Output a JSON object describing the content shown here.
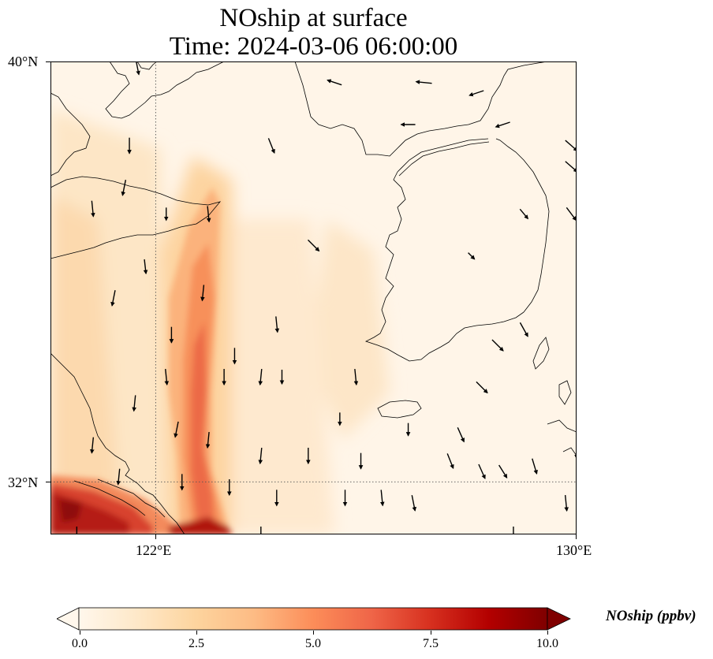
{
  "title": {
    "line1": "NOship at surface",
    "line2": "Time: 2024-03-06 06:00:00"
  },
  "axes": {
    "lat_labels": [
      "40°N",
      "32°N"
    ],
    "lon_labels": [
      "122°E",
      "130°E"
    ],
    "lon_range": [
      120,
      130
    ],
    "lat_range": [
      31,
      40
    ],
    "gridlines": "dotted at 122°E and 32°N"
  },
  "colorbar": {
    "label": "NOship (ppbv)",
    "ticks": [
      "0.0",
      "2.5",
      "5.0",
      "7.5",
      "10.0"
    ],
    "range": [
      0,
      10
    ],
    "extend": "both",
    "colormap": "OrRd",
    "colors": [
      "#fff7ec",
      "#fee8c8",
      "#fdd49e",
      "#fdbb84",
      "#fc8d59",
      "#ef6548",
      "#d7301f",
      "#b30000",
      "#7f0000"
    ]
  },
  "field": {
    "description_values_ppbv": "ship-lane NO concentration",
    "samples": [
      {
        "lon": 120.3,
        "lat": 31.3,
        "value": 9.5
      },
      {
        "lon": 121.2,
        "lat": 31.4,
        "value": 9.0
      },
      {
        "lon": 122.6,
        "lat": 31.2,
        "value": 9.5
      },
      {
        "lon": 122.8,
        "lat": 32.3,
        "value": 6.5
      },
      {
        "lon": 123.0,
        "lat": 33.5,
        "value": 5.5
      },
      {
        "lon": 123.1,
        "lat": 35.0,
        "value": 4.5
      },
      {
        "lon": 123.1,
        "lat": 36.2,
        "value": 3.5
      },
      {
        "lon": 121.3,
        "lat": 37.5,
        "value": 2.8
      },
      {
        "lon": 120.6,
        "lat": 36.0,
        "value": 2.3
      },
      {
        "lon": 120.3,
        "lat": 33.5,
        "value": 2.0
      },
      {
        "lon": 125.6,
        "lat": 34.5,
        "value": 2.2
      },
      {
        "lon": 126.0,
        "lat": 33.5,
        "value": 1.2
      },
      {
        "lon": 128.5,
        "lat": 39.0,
        "value": 0.3
      }
    ]
  },
  "wind_vectors": [
    {
      "lon": 121.65,
      "lat": 39.9,
      "u": 0.2,
      "v": -1.0
    },
    {
      "lon": 121.5,
      "lat": 38.4,
      "u": 0.0,
      "v": -1.0
    },
    {
      "lon": 121.4,
      "lat": 37.6,
      "u": -0.2,
      "v": -1.0
    },
    {
      "lon": 120.8,
      "lat": 37.2,
      "u": 0.1,
      "v": -1.0
    },
    {
      "lon": 122.2,
      "lat": 37.1,
      "u": 0.0,
      "v": -0.8
    },
    {
      "lon": 123.0,
      "lat": 37.1,
      "u": 0.1,
      "v": -1.0
    },
    {
      "lon": 124.2,
      "lat": 38.4,
      "u": 0.4,
      "v": -1.0
    },
    {
      "lon": 125.0,
      "lat": 36.5,
      "u": 0.7,
      "v": -0.7
    },
    {
      "lon": 121.8,
      "lat": 36.1,
      "u": 0.1,
      "v": -0.9
    },
    {
      "lon": 122.9,
      "lat": 35.6,
      "u": -0.1,
      "v": -1.0
    },
    {
      "lon": 124.3,
      "lat": 35.0,
      "u": 0.1,
      "v": -1.0
    },
    {
      "lon": 122.3,
      "lat": 34.8,
      "u": 0.0,
      "v": -1.0
    },
    {
      "lon": 121.2,
      "lat": 35.5,
      "u": -0.2,
      "v": -1.0
    },
    {
      "lon": 123.5,
      "lat": 34.4,
      "u": 0.0,
      "v": -1.0
    },
    {
      "lon": 124.4,
      "lat": 34.0,
      "u": 0.0,
      "v": -0.9
    },
    {
      "lon": 125.8,
      "lat": 34.0,
      "u": 0.1,
      "v": -1.0
    },
    {
      "lon": 122.2,
      "lat": 34.0,
      "u": 0.1,
      "v": -1.0
    },
    {
      "lon": 123.3,
      "lat": 34.0,
      "u": 0.0,
      "v": -1.0
    },
    {
      "lon": 124.0,
      "lat": 34.0,
      "u": -0.1,
      "v": -1.0
    },
    {
      "lon": 121.6,
      "lat": 33.5,
      "u": -0.1,
      "v": -1.0
    },
    {
      "lon": 122.4,
      "lat": 33.0,
      "u": -0.2,
      "v": -1.0
    },
    {
      "lon": 123.0,
      "lat": 32.8,
      "u": -0.1,
      "v": -1.0
    },
    {
      "lon": 120.8,
      "lat": 32.7,
      "u": -0.1,
      "v": -1.0
    },
    {
      "lon": 124.0,
      "lat": 32.5,
      "u": -0.1,
      "v": -1.0
    },
    {
      "lon": 124.9,
      "lat": 32.5,
      "u": 0.0,
      "v": -1.0
    },
    {
      "lon": 125.9,
      "lat": 32.4,
      "u": 0.0,
      "v": -1.0
    },
    {
      "lon": 125.5,
      "lat": 33.2,
      "u": 0.0,
      "v": -0.8
    },
    {
      "lon": 126.8,
      "lat": 33.0,
      "u": 0.0,
      "v": -0.8
    },
    {
      "lon": 121.3,
      "lat": 32.1,
      "u": -0.1,
      "v": -1.0
    },
    {
      "lon": 122.5,
      "lat": 32.0,
      "u": 0.0,
      "v": -1.0
    },
    {
      "lon": 123.4,
      "lat": 31.9,
      "u": 0.0,
      "v": -1.0
    },
    {
      "lon": 124.3,
      "lat": 31.7,
      "u": 0.0,
      "v": -1.0
    },
    {
      "lon": 125.6,
      "lat": 31.7,
      "u": 0.0,
      "v": -1.0
    },
    {
      "lon": 126.3,
      "lat": 31.7,
      "u": 0.1,
      "v": -1.0
    },
    {
      "lon": 126.9,
      "lat": 31.6,
      "u": 0.2,
      "v": -1.0
    },
    {
      "lon": 127.6,
      "lat": 32.4,
      "u": 0.4,
      "v": -1.0
    },
    {
      "lon": 128.2,
      "lat": 32.2,
      "u": 0.4,
      "v": -0.9
    },
    {
      "lon": 128.6,
      "lat": 32.2,
      "u": 0.5,
      "v": -0.8
    },
    {
      "lon": 129.2,
      "lat": 32.3,
      "u": 0.3,
      "v": -1.0
    },
    {
      "lon": 127.8,
      "lat": 32.9,
      "u": 0.4,
      "v": -0.9
    },
    {
      "lon": 128.2,
      "lat": 33.8,
      "u": 0.7,
      "v": -0.7
    },
    {
      "lon": 128.5,
      "lat": 34.6,
      "u": 0.7,
      "v": -0.7
    },
    {
      "lon": 129.0,
      "lat": 34.9,
      "u": 0.5,
      "v": -0.9
    },
    {
      "lon": 128.0,
      "lat": 36.3,
      "u": 0.4,
      "v": -0.4
    },
    {
      "lon": 129.0,
      "lat": 37.1,
      "u": 0.5,
      "v": -0.6
    },
    {
      "lon": 129.9,
      "lat": 37.1,
      "u": 0.6,
      "v": -0.8
    },
    {
      "lon": 129.9,
      "lat": 38.0,
      "u": 0.8,
      "v": -0.7
    },
    {
      "lon": 129.9,
      "lat": 38.4,
      "u": 0.8,
      "v": -0.7
    },
    {
      "lon": 128.6,
      "lat": 38.8,
      "u": -0.9,
      "v": -0.3
    },
    {
      "lon": 126.8,
      "lat": 38.8,
      "u": -0.9,
      "v": 0.0
    },
    {
      "lon": 128.1,
      "lat": 39.4,
      "u": -0.9,
      "v": -0.3
    },
    {
      "lon": 127.1,
      "lat": 39.6,
      "u": -1.0,
      "v": 0.1
    },
    {
      "lon": 125.4,
      "lat": 39.6,
      "u": -0.9,
      "v": 0.3
    },
    {
      "lon": 130.0,
      "lat": 32.6,
      "u": 0.0,
      "v": -1.0
    },
    {
      "lon": 129.8,
      "lat": 31.6,
      "u": 0.1,
      "v": -1.0
    },
    {
      "lon": 124.0,
      "lat": 31.0,
      "u": 0.0,
      "v": -1.0
    },
    {
      "lon": 128.8,
      "lat": 31.0,
      "u": 0.0,
      "v": -1.0
    },
    {
      "lon": 120.5,
      "lat": 31.0,
      "u": 0.0,
      "v": -1.0
    }
  ]
}
